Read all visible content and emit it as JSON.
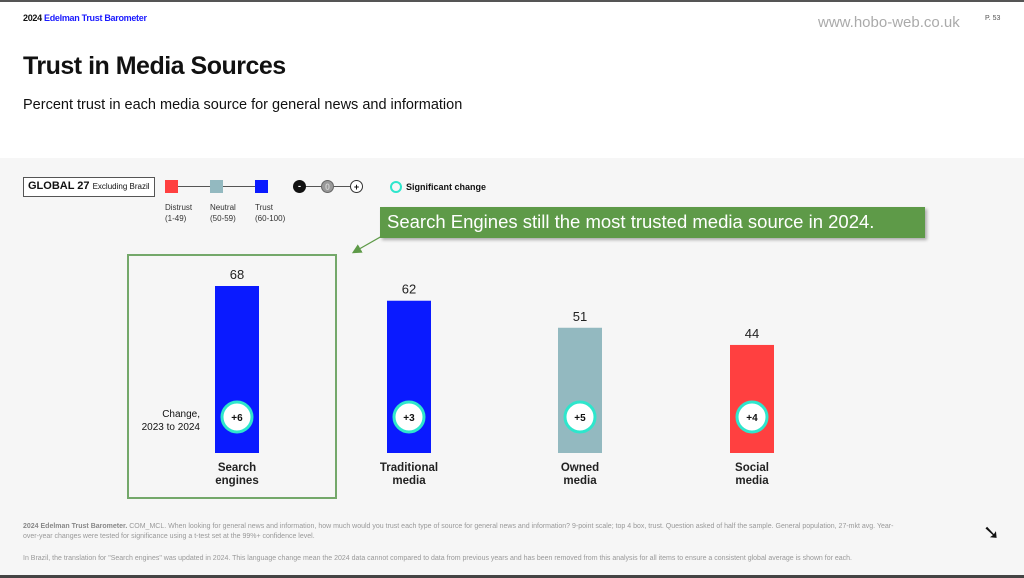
{
  "header": {
    "brand_year": "2024",
    "brand_name": "Edelman Trust Barometer",
    "site": "www.hobo-web.co.uk",
    "page": "P. 53"
  },
  "title": "Trust in Media Sources",
  "subtitle": "Percent trust in each media source for general news and information",
  "legend": {
    "scope": "GLOBAL 27",
    "scope_note": "Excluding Brazil",
    "levels": [
      {
        "label": "Distrust",
        "range": "(1-49)",
        "color": "#ff4040"
      },
      {
        "label": "Neutral",
        "range": "(50-59)",
        "color": "#93b9c0"
      },
      {
        "label": "Trust",
        "range": "(60-100)",
        "color": "#0a1aff"
      }
    ],
    "change_icons": [
      "-",
      "0",
      "+"
    ],
    "significant": "Significant change",
    "significant_color": "#2ee6cc"
  },
  "callout": "Search Engines still the most trusted media source in 2024.",
  "change_label_1": "Change,",
  "change_label_2": "2023 to 2024",
  "chart_data": {
    "type": "bar",
    "categories": [
      "Search engines",
      "Traditional media",
      "Owned media",
      "Social media"
    ],
    "category_lines": [
      [
        "Search",
        "engines"
      ],
      [
        "Traditional",
        "media"
      ],
      [
        "Owned",
        "media"
      ],
      [
        "Social",
        "media"
      ]
    ],
    "values": [
      68,
      62,
      51,
      44
    ],
    "changes": [
      "+6",
      "+3",
      "+5",
      "+4"
    ],
    "significant": [
      true,
      true,
      true,
      true
    ],
    "colors": [
      "#0a1aff",
      "#0a1aff",
      "#93b9c0",
      "#ff4040"
    ],
    "ylim": [
      0,
      100
    ]
  },
  "footer": {
    "source": "2024 Edelman Trust Barometer.",
    "note1": " COM_MCL. When looking for general news and information, how much would you trust each type of source for general news and information? 9-point scale; top 4 box, trust. Question asked of half the sample. General population, 27-mkt avg. Year-over-year changes were tested for significance using a t-test set at the 99%+ confidence level.",
    "note2": "In Brazil, the translation for \"Search engines\" was updated in 2024. This language change mean the 2024 data cannot compared to data from previous years and has been removed from this analysis for all items to ensure a consistent global average is shown for each."
  }
}
